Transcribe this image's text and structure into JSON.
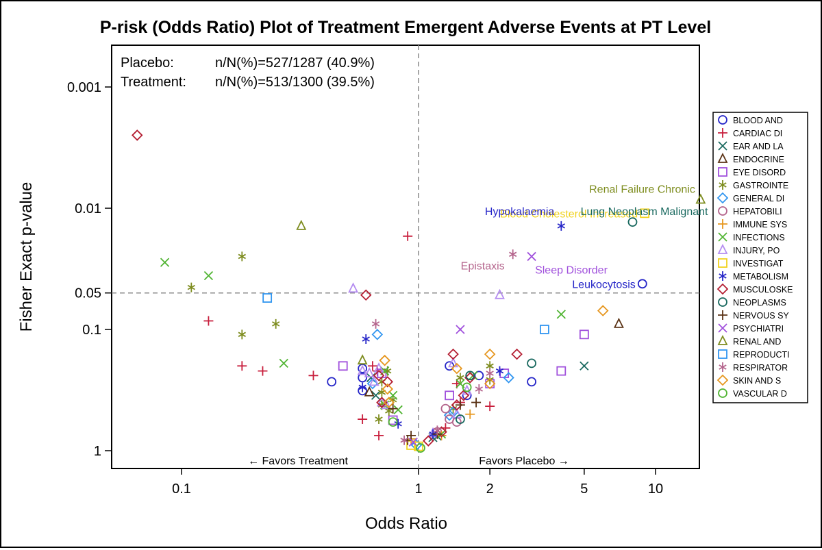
{
  "chart_data": {
    "type": "scatter",
    "title": "P-risk (Odds Ratio) Plot of Treatment Emergent Adverse Events at PT Level",
    "xlabel": "Odds Ratio",
    "ylabel": "Fisher Exact p-value",
    "x_scale": "log",
    "y_scale": "log-reversed",
    "xlim": [
      0.063,
      17.5
    ],
    "ylim": [
      1.4,
      0.00042
    ],
    "x_ticks": [
      {
        "value": 0.1,
        "label": "0.1"
      },
      {
        "value": 1,
        "label": "1"
      },
      {
        "value": 2,
        "label": "2"
      },
      {
        "value": 5,
        "label": "5"
      },
      {
        "value": 10,
        "label": "10"
      }
    ],
    "y_ticks": [
      {
        "value": 0.001,
        "label": "0.001"
      },
      {
        "value": 0.01,
        "label": "0.01"
      },
      {
        "value": 0.05,
        "label": "0.05"
      },
      {
        "value": 0.1,
        "label": "0.1"
      },
      {
        "value": 1,
        "label": "1"
      }
    ],
    "reference_lines": [
      {
        "axis": "x",
        "value": 1,
        "style": "dashed"
      },
      {
        "axis": "y",
        "value": 0.05,
        "style": "dashed"
      }
    ],
    "inset": {
      "rows": [
        {
          "label": "Placebo:",
          "value": "n/N(%)=527/1287 (40.9%)"
        },
        {
          "label": "Treatment:",
          "value": "n/N(%)=513/1300 (39.5%)"
        }
      ]
    },
    "favors": {
      "left": "← Favors Treatment",
      "right": "Favors Placebo →"
    },
    "legend_position": "right",
    "series": [
      {
        "name": "BLOOD AND",
        "marker": "circle",
        "color": "#2626c8",
        "points": [
          [
            0.43,
            0.27
          ],
          [
            0.58,
            0.25
          ],
          [
            0.58,
            0.32
          ],
          [
            0.58,
            0.21
          ],
          [
            1.35,
            0.2
          ],
          [
            1.6,
            0.35
          ],
          [
            1.8,
            0.24
          ],
          [
            3.0,
            0.27
          ],
          [
            8.8,
            0.042
          ]
        ]
      },
      {
        "name": "CARDIAC DI",
        "marker": "plus",
        "color": "#c81e3c",
        "points": [
          [
            0.13,
            0.085
          ],
          [
            0.18,
            0.2
          ],
          [
            0.22,
            0.22
          ],
          [
            0.36,
            0.24
          ],
          [
            0.58,
            0.55
          ],
          [
            0.64,
            0.2
          ],
          [
            0.67,
            0.22
          ],
          [
            0.9,
            0.017
          ],
          [
            1.45,
            0.28
          ],
          [
            1.5,
            0.4
          ],
          [
            2.0,
            0.43
          ],
          [
            0.68,
            0.75
          ],
          [
            1.3,
            0.65
          ]
        ]
      },
      {
        "name": "EAR AND LA",
        "marker": "x",
        "color": "#19695f",
        "points": [
          [
            0.63,
            0.25
          ],
          [
            0.66,
            0.35
          ],
          [
            5.0,
            0.2
          ],
          [
            1.15,
            0.78
          ],
          [
            1.2,
            0.76
          ]
        ]
      },
      {
        "name": "ENDOCRINE",
        "marker": "triangle",
        "color": "#5a3214",
        "points": [
          [
            0.62,
            0.33
          ],
          [
            7.0,
            0.09
          ]
        ]
      },
      {
        "name": "EYE DISORD",
        "marker": "square",
        "color": "#a050dc",
        "points": [
          [
            0.48,
            0.2
          ],
          [
            0.7,
            0.23
          ],
          [
            1.35,
            0.35
          ],
          [
            2.0,
            0.28
          ],
          [
            2.3,
            0.23
          ],
          [
            4.0,
            0.22
          ],
          [
            5.0,
            0.11
          ],
          [
            0.78,
            0.56
          ]
        ]
      },
      {
        "name": "GASTROINTE",
        "marker": "asterisk",
        "color": "#7d8c1e",
        "points": [
          [
            0.11,
            0.045
          ],
          [
            0.18,
            0.025
          ],
          [
            0.18,
            0.11
          ],
          [
            0.25,
            0.09
          ],
          [
            0.7,
            0.27
          ],
          [
            0.74,
            0.22
          ],
          [
            0.7,
            0.33
          ],
          [
            0.68,
            0.55
          ],
          [
            0.7,
            0.42
          ],
          [
            0.75,
            0.47
          ],
          [
            1.4,
            0.45
          ],
          [
            2.0,
            0.2
          ],
          [
            2.0,
            0.26
          ],
          [
            1.5,
            0.25
          ],
          [
            0.78,
            0.38
          ]
        ]
      },
      {
        "name": "GENERAL DI",
        "marker": "diamond",
        "color": "#3296f0",
        "points": [
          [
            0.67,
            0.11
          ],
          [
            0.64,
            0.28
          ],
          [
            2.4,
            0.25
          ],
          [
            1.4,
            0.48
          ],
          [
            1.35,
            0.51
          ],
          [
            0.98,
            0.9
          ]
        ]
      },
      {
        "name": "HEPATOBILI",
        "marker": "circle",
        "color": "#b4648c",
        "points": [
          [
            1.3,
            0.45
          ],
          [
            1.35,
            0.55
          ],
          [
            1.45,
            0.58
          ],
          [
            1.2,
            0.7
          ]
        ]
      },
      {
        "name": "IMMUNE SYS",
        "marker": "plus",
        "color": "#e6961e",
        "points": [
          [
            1.65,
            0.5
          ],
          [
            0.93,
            0.8
          ],
          [
            1.25,
            0.75
          ]
        ]
      },
      {
        "name": "INFECTIONS",
        "marker": "x",
        "color": "#50b432",
        "points": [
          [
            0.085,
            0.028
          ],
          [
            0.13,
            0.036
          ],
          [
            0.27,
            0.19
          ],
          [
            0.72,
            0.22
          ],
          [
            0.78,
            0.35
          ],
          [
            1.5,
            0.28
          ],
          [
            1.7,
            0.24
          ],
          [
            4.0,
            0.075
          ],
          [
            0.72,
            0.42
          ],
          [
            0.82,
            0.46
          ],
          [
            1.25,
            0.73
          ]
        ]
      },
      {
        "name": "INJURY, PO",
        "marker": "triangle",
        "color": "#b48cf0",
        "points": [
          [
            0.53,
            0.046
          ],
          [
            0.58,
            0.22
          ],
          [
            0.62,
            0.23
          ],
          [
            0.68,
            0.21
          ],
          [
            0.65,
            0.27
          ],
          [
            0.7,
            0.4
          ],
          [
            0.73,
            0.42
          ],
          [
            1.4,
            0.19
          ],
          [
            1.6,
            0.32
          ],
          [
            1.45,
            0.5
          ],
          [
            2.2,
            0.052
          ],
          [
            1.15,
            0.72
          ]
        ]
      },
      {
        "name": "INVESTIGAT",
        "marker": "square",
        "color": "#f0d21e",
        "points": [
          [
            9.0,
            0.011
          ],
          [
            0.93,
            0.9
          ],
          [
            1.0,
            0.92
          ]
        ]
      },
      {
        "name": "METABOLISM",
        "marker": "asterisk",
        "color": "#2626c8",
        "points": [
          [
            0.6,
            0.12
          ],
          [
            0.58,
            0.3
          ],
          [
            0.82,
            0.6
          ],
          [
            2.2,
            0.22
          ],
          [
            4.0,
            0.014
          ],
          [
            1.15,
            0.73
          ]
        ]
      },
      {
        "name": "MUSCULOSKE",
        "marker": "diamond",
        "color": "#b41e32",
        "points": [
          [
            0.065,
            0.0025
          ],
          [
            0.6,
            0.052
          ],
          [
            0.68,
            0.24
          ],
          [
            0.74,
            0.27
          ],
          [
            0.7,
            0.4
          ],
          [
            1.4,
            0.16
          ],
          [
            1.65,
            0.25
          ],
          [
            2.6,
            0.16
          ],
          [
            1.55,
            0.35
          ],
          [
            1.45,
            0.42
          ],
          [
            1.25,
            0.7
          ],
          [
            1.1,
            0.83
          ]
        ]
      },
      {
        "name": "NEOPLASMS",
        "marker": "circle",
        "color": "#19695f",
        "points": [
          [
            8.0,
            0.013
          ],
          [
            3.0,
            0.19
          ],
          [
            1.65,
            0.24
          ],
          [
            1.5,
            0.55
          ]
        ]
      },
      {
        "name": "NERVOUS SY",
        "marker": "plus",
        "color": "#5a3214",
        "points": [
          [
            0.78,
            0.45
          ],
          [
            1.5,
            0.42
          ],
          [
            1.75,
            0.4
          ],
          [
            0.93,
            0.75
          ],
          [
            0.9,
            0.82
          ],
          [
            1.2,
            0.73
          ]
        ]
      },
      {
        "name": "PSYCHIATRI",
        "marker": "x",
        "color": "#a050dc",
        "points": [
          [
            1.5,
            0.1
          ],
          [
            3.0,
            0.025
          ],
          [
            0.95,
            0.85
          ]
        ]
      },
      {
        "name": "RENAL AND",
        "marker": "triangle",
        "color": "#7d8c1e",
        "points": [
          [
            0.32,
            0.014
          ],
          [
            0.58,
            0.18
          ],
          [
            15.5,
            0.0085
          ]
        ]
      },
      {
        "name": "REPRODUCTI",
        "marker": "square",
        "color": "#3296f0",
        "points": [
          [
            0.23,
            0.055
          ],
          [
            3.4,
            0.1
          ]
        ]
      },
      {
        "name": "RESPIRATOR",
        "marker": "asterisk",
        "color": "#b4648c",
        "points": [
          [
            0.66,
            0.09
          ],
          [
            2.0,
            0.23
          ],
          [
            2.5,
            0.024
          ],
          [
            1.8,
            0.31
          ],
          [
            1.2,
            0.68
          ],
          [
            0.87,
            0.82
          ]
        ]
      },
      {
        "name": "SKIN AND S",
        "marker": "diamond",
        "color": "#e6961e",
        "points": [
          [
            0.72,
            0.18
          ],
          [
            0.74,
            0.31
          ],
          [
            1.45,
            0.21
          ],
          [
            2.0,
            0.16
          ],
          [
            6.0,
            0.07
          ],
          [
            0.75,
            0.4
          ],
          [
            2.0,
            0.28
          ]
        ]
      },
      {
        "name": "VASCULAR D",
        "marker": "circle",
        "color": "#50b432",
        "points": [
          [
            0.78,
            0.58
          ],
          [
            1.02,
            0.95
          ],
          [
            1.6,
            0.3
          ]
        ]
      }
    ],
    "annotations": [
      {
        "text": "Renal Failure Chronic",
        "x": 15.5,
        "y": 0.0085,
        "color": "#7d8c1e"
      },
      {
        "text": "Blood Cholesterol Increased",
        "x": 9.0,
        "y": 0.011,
        "color": "#f0d21e"
      },
      {
        "text": "Hypokalaemia",
        "x": 4.0,
        "y": 0.014,
        "color": "#2626c8"
      },
      {
        "text": "Lung Neoplasm Malignant",
        "x": 8.0,
        "y": 0.013,
        "color": "#19695f"
      },
      {
        "text": "Epistaxis",
        "x": 2.5,
        "y": 0.024,
        "color": "#b4648c"
      },
      {
        "text": "Sleep Disorder",
        "x": 3.0,
        "y": 0.025,
        "color": "#a050dc"
      },
      {
        "text": "Leukocytosis",
        "x": 8.8,
        "y": 0.042,
        "color": "#2626c8"
      }
    ]
  }
}
